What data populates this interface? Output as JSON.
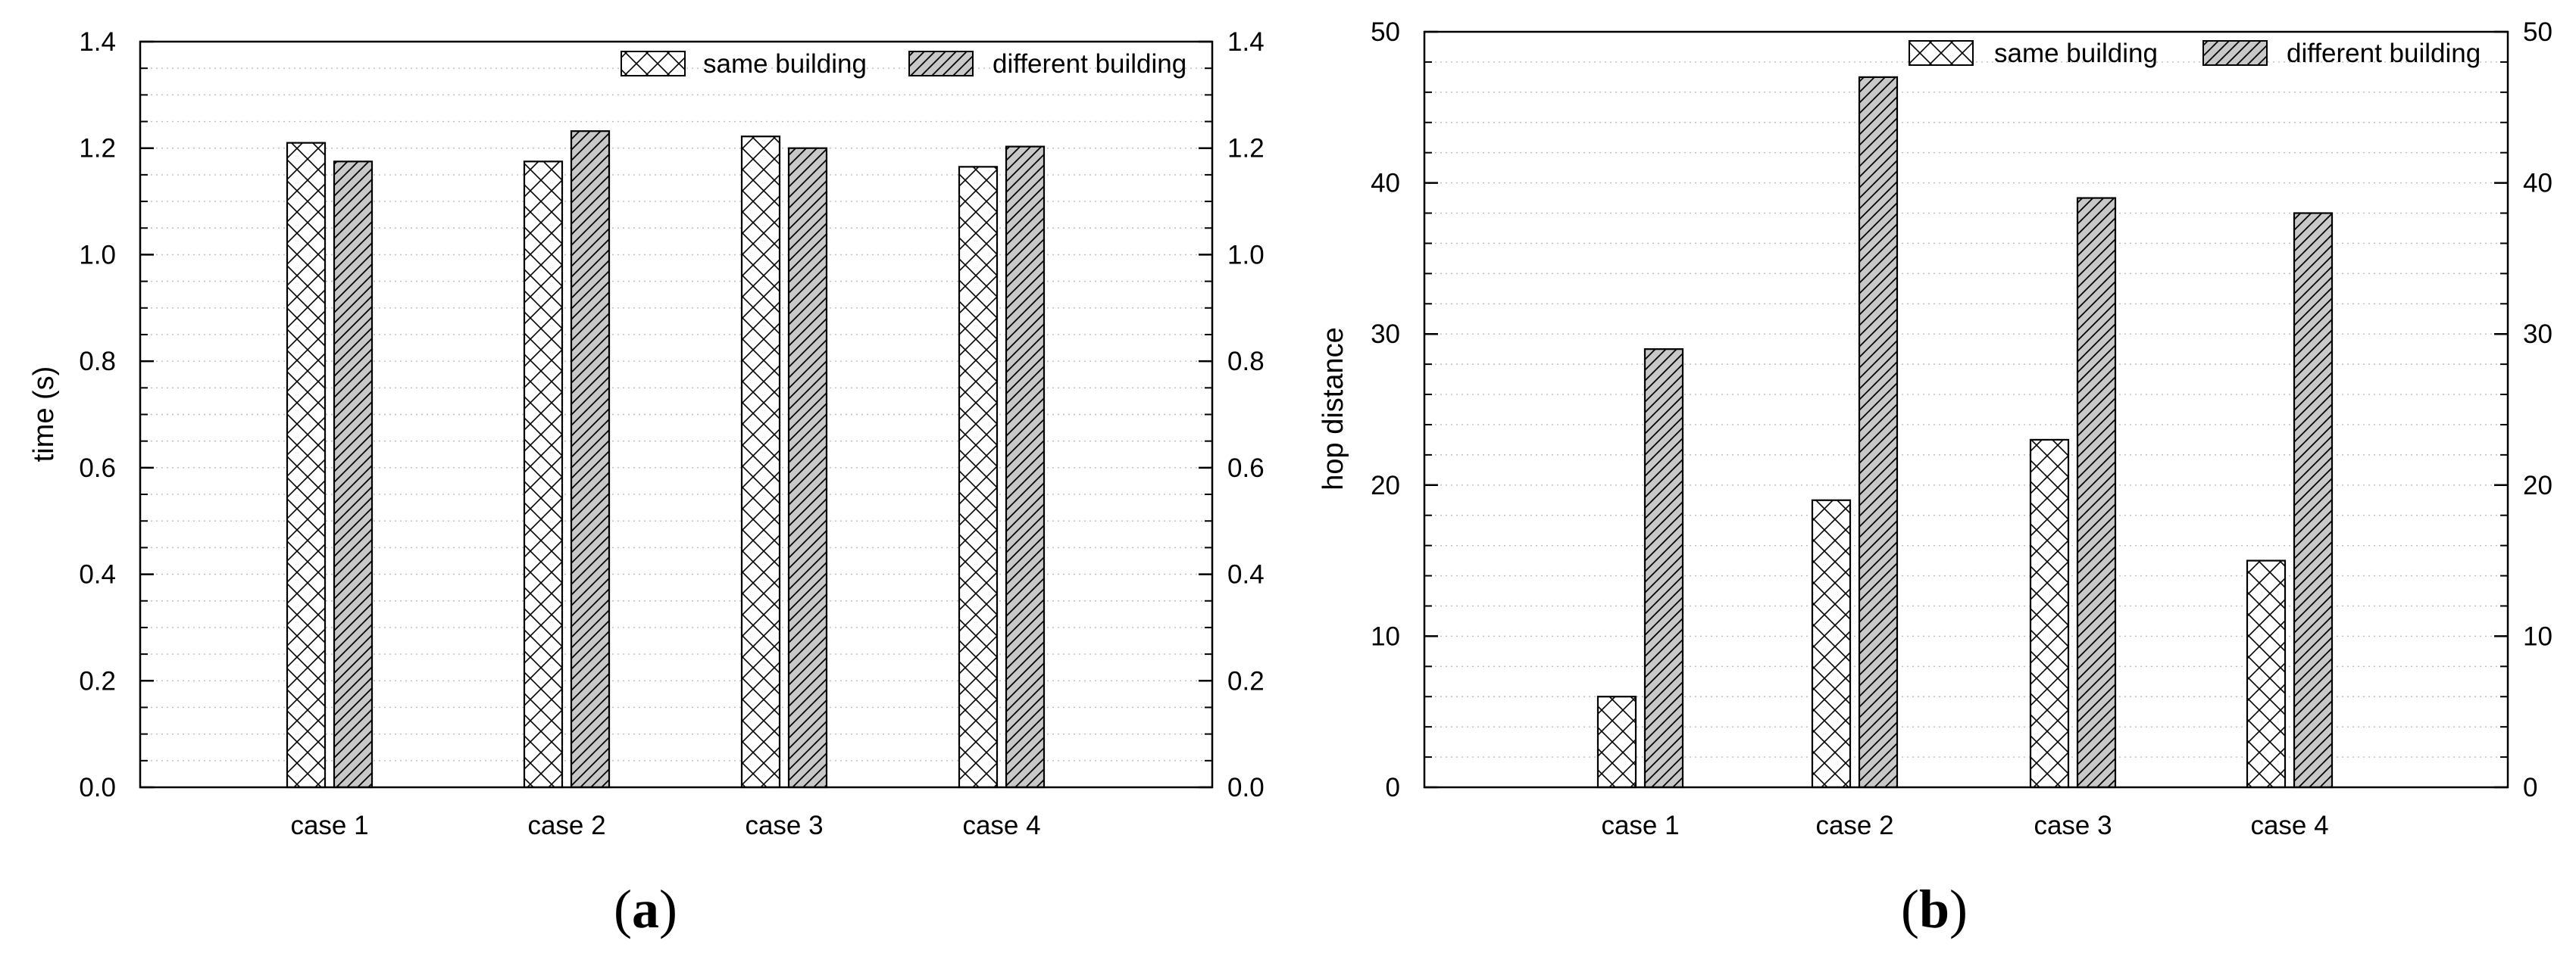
{
  "chart_data": [
    {
      "id": "a",
      "type": "bar",
      "panel_label_open": "(",
      "panel_label_letter": "a",
      "panel_label_close": ")",
      "title": "",
      "xlabel": "",
      "ylabel": "time (s)",
      "ylim": [
        0,
        1.4
      ],
      "y_major_step": 0.2,
      "y_minor_step": 0.05,
      "ytick_labels": [
        "0.0",
        "0.2",
        "0.4",
        "0.6",
        "0.8",
        "1.0",
        "1.2",
        "1.4"
      ],
      "right_axis": true,
      "grid": "dotted horizontal minor",
      "categories": [
        "case 1",
        "case 2",
        "case 3",
        "case 4"
      ],
      "series": [
        {
          "name": "same building",
          "pattern": "crosshatch",
          "values": [
            1.21,
            1.175,
            1.222,
            1.165
          ]
        },
        {
          "name": "different building",
          "pattern": "diagonal-gray",
          "values": [
            1.175,
            1.232,
            1.2,
            1.203
          ]
        }
      ],
      "legend": "top-right"
    },
    {
      "id": "b",
      "type": "bar",
      "panel_label_open": "(",
      "panel_label_letter": "b",
      "panel_label_close": ")",
      "title": "",
      "xlabel": "",
      "ylabel": "hop distance",
      "ylim": [
        0,
        50
      ],
      "y_major_step": 10,
      "y_minor_step": 2,
      "ytick_labels": [
        "0",
        "10",
        "20",
        "30",
        "40",
        "50"
      ],
      "right_axis": true,
      "grid": "dotted horizontal minor",
      "categories": [
        "case 1",
        "case 2",
        "case 3",
        "case 4"
      ],
      "series": [
        {
          "name": "same building",
          "pattern": "crosshatch",
          "values": [
            6,
            19,
            23,
            15
          ]
        },
        {
          "name": "different building",
          "pattern": "diagonal-gray",
          "values": [
            29,
            47,
            39,
            38
          ]
        }
      ],
      "legend": "top-right"
    }
  ],
  "colors": {
    "bar_outline": "#000000",
    "hatch_fill": "#ffffff",
    "diag_fill": "#c8c8c8",
    "grid": "#bdbdbd"
  }
}
